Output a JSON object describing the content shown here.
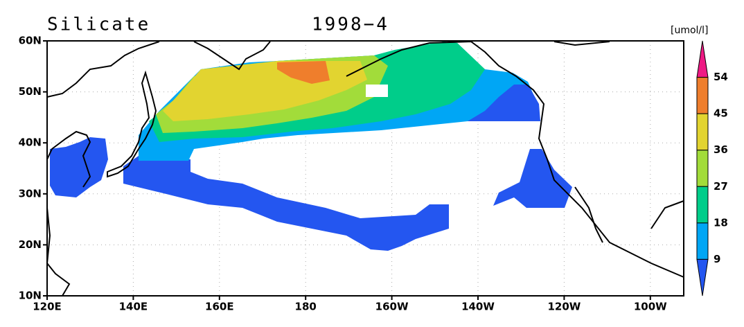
{
  "title": "Silicate",
  "date": "1998−4",
  "unit": "[umol/l]",
  "lat_labels": [
    "60N",
    "50N",
    "40N",
    "30N",
    "20N",
    "10N"
  ],
  "lon_labels": [
    "120E",
    "140E",
    "160E",
    "180",
    "160W",
    "140W",
    "120W",
    "100W"
  ],
  "colorbar": {
    "levels": [
      54,
      45,
      36,
      27,
      18,
      9
    ],
    "colors": [
      "#ee1a84",
      "#ef7e2c",
      "#e2d430",
      "#a2dc3a",
      "#00cd8a",
      "#00a6f5",
      "#2456f0"
    ]
  }
}
